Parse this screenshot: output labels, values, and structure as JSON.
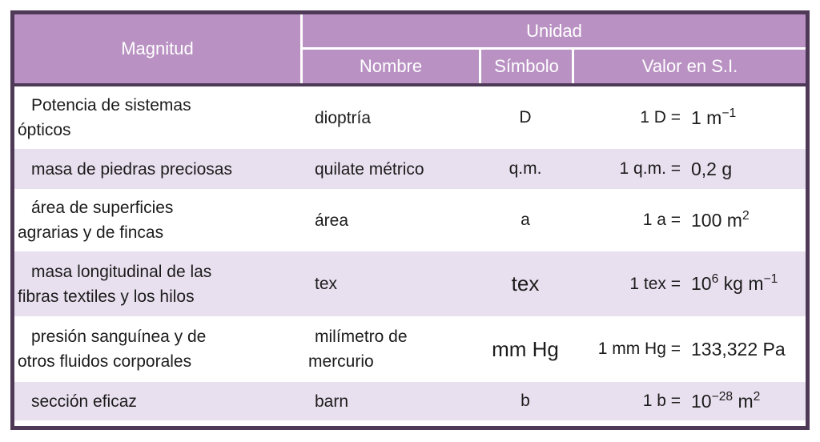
{
  "colors": {
    "header_bg": "#b992c3",
    "border_color": "#4e3957",
    "row_alt_bg": "#e9e0ef",
    "row_bg": "#ffffff",
    "header_text": "#ffffff",
    "body_text": "#1c1c1c",
    "page_bg": "#ffffff"
  },
  "table": {
    "header": {
      "magnitud": "Magnitud",
      "unidad": "Unidad",
      "nombre": "Nombre",
      "simbolo": "Símbolo",
      "valor": "Valor en S.I."
    },
    "rows": [
      {
        "magnitud_lines": [
          "Potencia de sistemas",
          "ópticos"
        ],
        "nombre_lines": [
          "dioptría"
        ],
        "simbolo": "D",
        "simbolo_size": "normal",
        "si_eq": "1 D =",
        "si_value": [
          {
            "text": "1 m"
          },
          {
            "sup": "−1"
          }
        ]
      },
      {
        "magnitud_lines": [
          "masa de piedras preciosas"
        ],
        "nombre_lines": [
          "quilate métrico"
        ],
        "simbolo": "q.m.",
        "simbolo_size": "normal",
        "si_eq": "1 q.m. =",
        "si_value": [
          {
            "text": "0,2 g"
          }
        ]
      },
      {
        "magnitud_lines": [
          "área de superficies",
          "agrarias y de fincas"
        ],
        "nombre_lines": [
          "área"
        ],
        "simbolo": "a",
        "simbolo_size": "normal",
        "si_eq": "1 a =",
        "si_value": [
          {
            "text": "100 m"
          },
          {
            "sup": "2"
          }
        ]
      },
      {
        "magnitud_lines": [
          "masa longitudinal de las",
          "fibras textiles y los hilos"
        ],
        "nombre_lines": [
          "tex"
        ],
        "simbolo": "tex",
        "simbolo_size": "large",
        "si_eq": "1 tex =",
        "si_value": [
          {
            "text": "10"
          },
          {
            "sup": "6"
          },
          {
            "text": " kg m"
          },
          {
            "sup": "−1"
          }
        ]
      },
      {
        "magnitud_lines": [
          "presión sanguínea y de",
          "otros fluidos corporales"
        ],
        "nombre_lines": [
          "milímetro de",
          "mercurio"
        ],
        "simbolo": "mm Hg",
        "simbolo_size": "large",
        "si_eq": "1 mm Hg =",
        "si_value": [
          {
            "text": "133,322 Pa"
          }
        ]
      },
      {
        "magnitud_lines": [
          "sección eficaz"
        ],
        "nombre_lines": [
          "barn"
        ],
        "simbolo": "b",
        "simbolo_size": "normal",
        "si_eq": "1 b =",
        "si_value": [
          {
            "text": "10"
          },
          {
            "sup": "−28"
          },
          {
            "text": " m"
          },
          {
            "sup": "2"
          }
        ]
      }
    ]
  }
}
